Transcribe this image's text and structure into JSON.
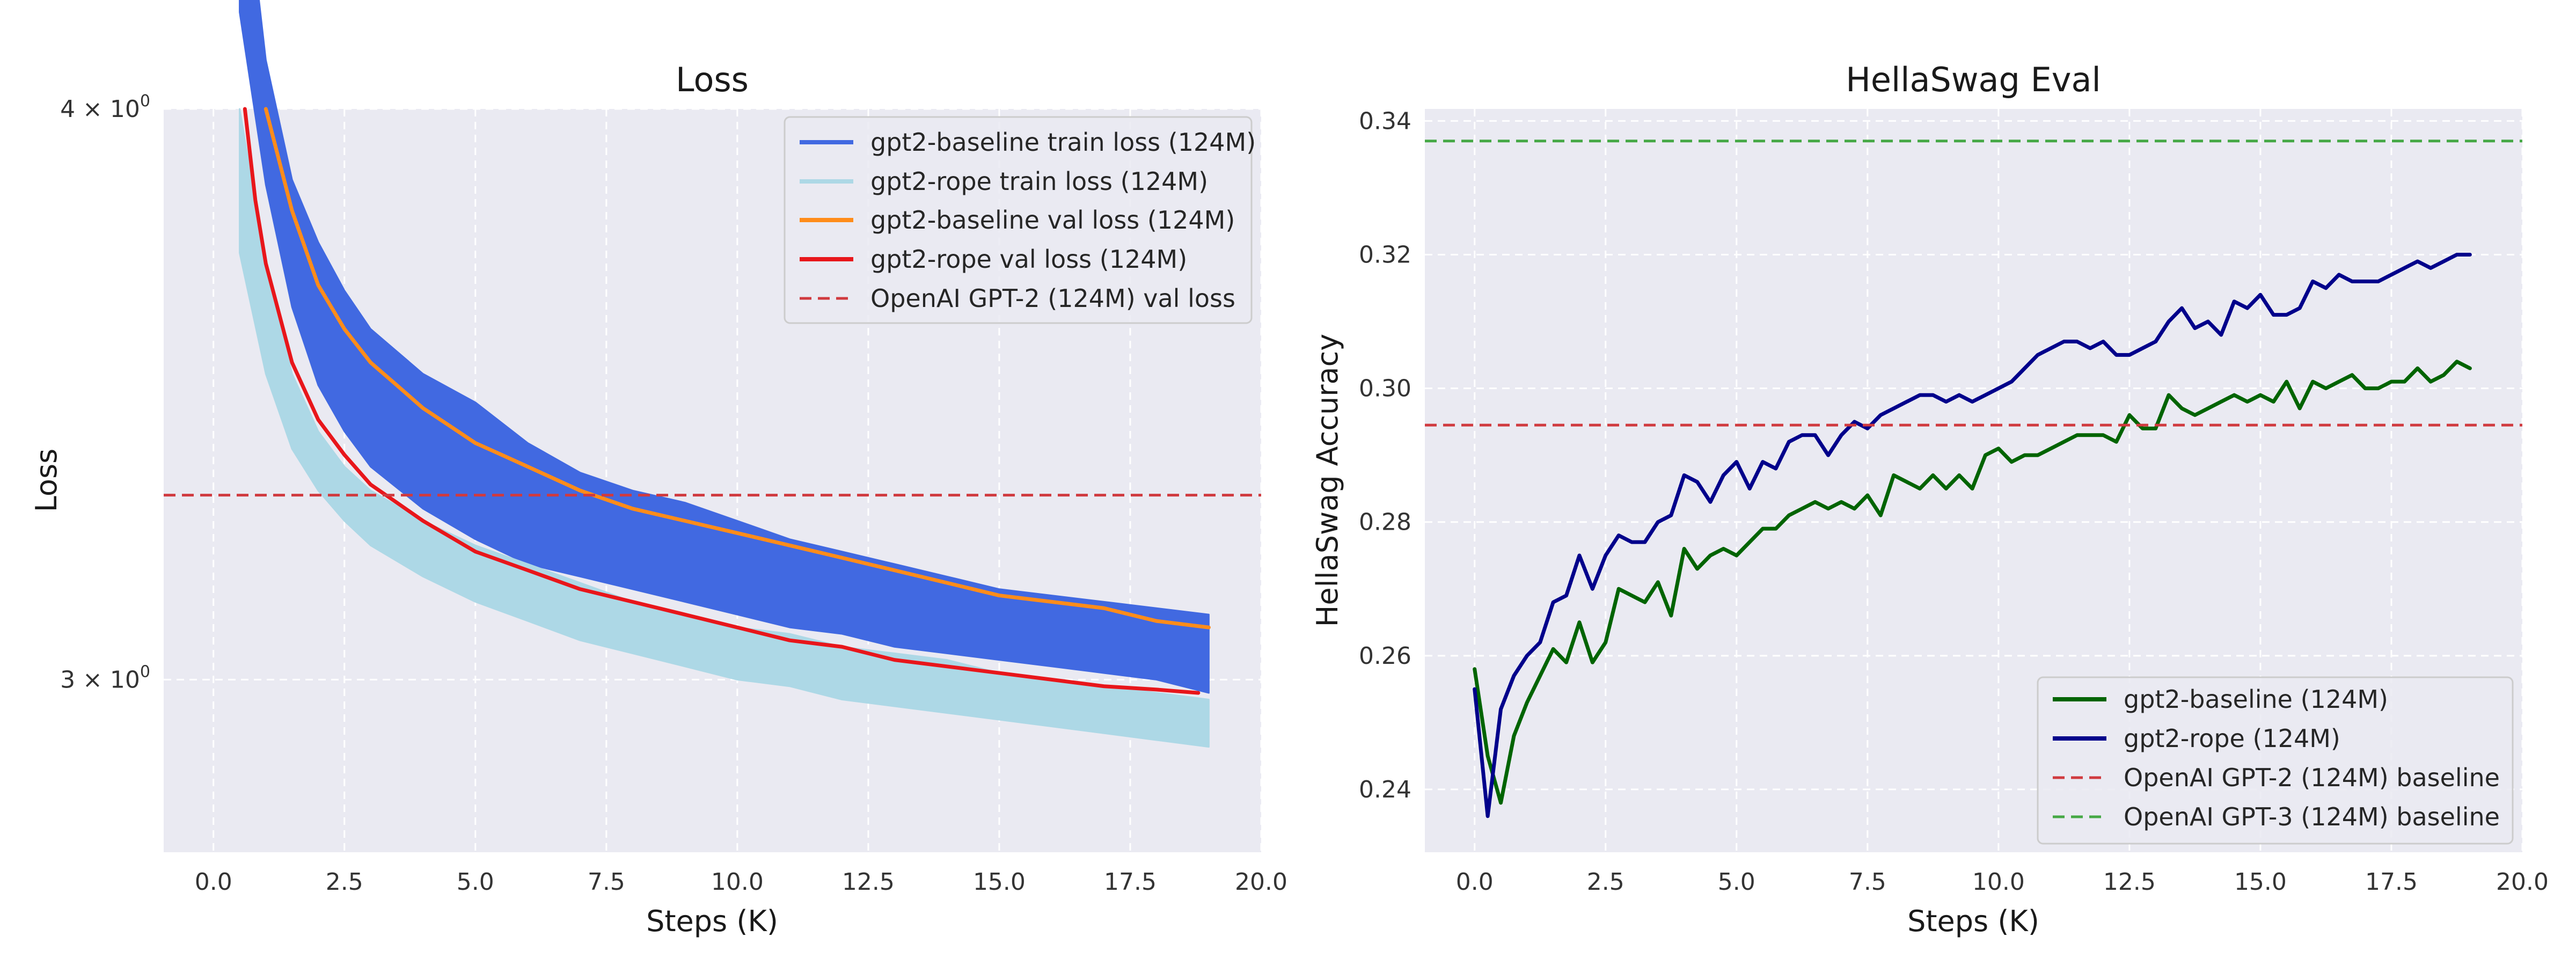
{
  "chart_data": [
    {
      "type": "line",
      "title": "Loss",
      "xlabel": "Steps (K)",
      "ylabel": "Loss",
      "yscale": "log",
      "xlim": [
        -0.95,
        20.0
      ],
      "ylim": [
        2.75,
        4.0
      ],
      "xticks": [
        0.0,
        2.5,
        5.0,
        7.5,
        10.0,
        12.5,
        15.0,
        17.5,
        20.0
      ],
      "xtick_labels": [
        "0.0",
        "2.5",
        "5.0",
        "7.5",
        "10.0",
        "12.5",
        "15.0",
        "17.5",
        "20.0"
      ],
      "yticks": [
        3,
        4
      ],
      "ytick_labels": [
        {
          "base": "3 × 10",
          "exp": "0"
        },
        {
          "base": "4 × 10",
          "exp": "0"
        }
      ],
      "grid": true,
      "legend_position": "top-right",
      "series": [
        {
          "name": "gpt2-baseline train loss (124M)",
          "color": "#4169e1",
          "style": "band",
          "x": [
            0.5,
            1.0,
            1.5,
            2.0,
            2.5,
            3.0,
            4.0,
            5.0,
            6.0,
            7.0,
            8.0,
            9.0,
            10.0,
            11.0,
            12.0,
            13.0,
            14.0,
            15.0,
            16.0,
            17.0,
            18.0,
            19.0
          ],
          "upper": [
            4.6,
            4.1,
            3.86,
            3.74,
            3.65,
            3.58,
            3.5,
            3.45,
            3.38,
            3.33,
            3.3,
            3.28,
            3.25,
            3.22,
            3.2,
            3.18,
            3.16,
            3.14,
            3.13,
            3.12,
            3.11,
            3.1
          ],
          "lower": [
            4.2,
            3.85,
            3.62,
            3.48,
            3.4,
            3.34,
            3.27,
            3.22,
            3.18,
            3.16,
            3.14,
            3.12,
            3.1,
            3.08,
            3.07,
            3.05,
            3.04,
            3.03,
            3.02,
            3.01,
            3.0,
            2.98
          ]
        },
        {
          "name": "gpt2-rope train loss (124M)",
          "color": "#add8e6",
          "style": "band",
          "x": [
            0.5,
            1.0,
            1.5,
            2.0,
            2.5,
            3.0,
            4.0,
            5.0,
            6.0,
            7.0,
            8.0,
            9.0,
            10.0,
            11.0,
            12.0,
            13.0,
            14.0,
            15.0,
            16.0,
            17.0,
            18.0,
            19.0
          ],
          "upper": [
            4.0,
            3.7,
            3.5,
            3.4,
            3.34,
            3.3,
            3.25,
            3.21,
            3.18,
            3.15,
            3.12,
            3.1,
            3.08,
            3.07,
            3.05,
            3.04,
            3.03,
            3.01,
            3.0,
            2.99,
            2.98,
            2.97
          ],
          "lower": [
            3.72,
            3.5,
            3.37,
            3.3,
            3.25,
            3.21,
            3.16,
            3.12,
            3.09,
            3.06,
            3.04,
            3.02,
            3.0,
            2.99,
            2.97,
            2.96,
            2.95,
            2.94,
            2.93,
            2.92,
            2.91,
            2.9
          ]
        },
        {
          "name": "gpt2-baseline val loss (124M)",
          "color": "#ff8c1a",
          "style": "line",
          "x": [
            1.0,
            1.5,
            2.0,
            2.5,
            3.0,
            3.5,
            4.0,
            4.5,
            5.0,
            5.5,
            6.0,
            7.0,
            8.0,
            9.0,
            10.0,
            11.0,
            12.0,
            13.0,
            14.0,
            15.0,
            16.0,
            17.0,
            18.0,
            19.0
          ],
          "y": [
            4.0,
            3.8,
            3.66,
            3.58,
            3.52,
            3.48,
            3.44,
            3.41,
            3.38,
            3.36,
            3.34,
            3.3,
            3.27,
            3.25,
            3.23,
            3.21,
            3.19,
            3.17,
            3.15,
            3.13,
            3.12,
            3.11,
            3.09,
            3.08
          ]
        },
        {
          "name": "gpt2-rope val loss (124M)",
          "color": "#e8161b",
          "style": "line",
          "x": [
            0.6,
            0.8,
            1.0,
            1.5,
            2.0,
            2.5,
            3.0,
            3.5,
            4.0,
            5.0,
            6.0,
            7.0,
            8.0,
            9.0,
            10.0,
            11.0,
            12.0,
            13.0,
            14.0,
            15.0,
            16.0,
            17.0,
            18.0,
            18.8
          ],
          "y": [
            4.0,
            3.82,
            3.7,
            3.52,
            3.42,
            3.36,
            3.31,
            3.28,
            3.25,
            3.2,
            3.17,
            3.14,
            3.12,
            3.1,
            3.08,
            3.06,
            3.05,
            3.03,
            3.02,
            3.01,
            3.0,
            2.99,
            2.985,
            2.98
          ]
        },
        {
          "name": "OpenAI GPT-2 (124M) val loss",
          "color": "#d03a3f",
          "style": "dashed-hline",
          "y": 3.2924
        }
      ]
    },
    {
      "type": "line",
      "title": "HellaSwag Eval",
      "xlabel": "Steps (K)",
      "ylabel": "HellaSwag Accuracy",
      "xlim": [
        -0.95,
        20.0
      ],
      "ylim": [
        0.2306,
        0.3418
      ],
      "xticks": [
        0.0,
        2.5,
        5.0,
        7.5,
        10.0,
        12.5,
        15.0,
        17.5,
        20.0
      ],
      "xtick_labels": [
        "0.0",
        "2.5",
        "5.0",
        "7.5",
        "10.0",
        "12.5",
        "15.0",
        "17.5",
        "20.0"
      ],
      "yticks": [
        0.24,
        0.26,
        0.28,
        0.3,
        0.32,
        0.34
      ],
      "ytick_labels": [
        "0.24",
        "0.26",
        "0.28",
        "0.30",
        "0.32",
        "0.34"
      ],
      "grid": true,
      "legend_position": "lower-right",
      "series": [
        {
          "name": "gpt2-baseline (124M)",
          "color": "#006400",
          "style": "line",
          "x": [
            0.0,
            0.25,
            0.5,
            0.75,
            1.0,
            1.25,
            1.5,
            1.75,
            2.0,
            2.25,
            2.5,
            2.75,
            3.0,
            3.25,
            3.5,
            3.75,
            4.0,
            4.25,
            4.5,
            4.75,
            5.0,
            5.25,
            5.5,
            5.75,
            6.0,
            6.25,
            6.5,
            6.75,
            7.0,
            7.25,
            7.5,
            7.75,
            8.0,
            8.25,
            8.5,
            8.75,
            9.0,
            9.25,
            9.5,
            9.75,
            10.0,
            10.25,
            10.5,
            10.75,
            11.0,
            11.25,
            11.5,
            11.75,
            12.0,
            12.25,
            12.5,
            12.75,
            13.0,
            13.25,
            13.5,
            13.75,
            14.0,
            14.25,
            14.5,
            14.75,
            15.0,
            15.25,
            15.5,
            15.75,
            16.0,
            16.25,
            16.5,
            16.75,
            17.0,
            17.25,
            17.5,
            17.75,
            18.0,
            18.25,
            18.5,
            18.75,
            19.0
          ],
          "y": [
            0.258,
            0.245,
            0.238,
            0.248,
            0.253,
            0.257,
            0.261,
            0.259,
            0.265,
            0.259,
            0.262,
            0.27,
            0.269,
            0.268,
            0.271,
            0.266,
            0.276,
            0.273,
            0.275,
            0.276,
            0.275,
            0.277,
            0.279,
            0.279,
            0.281,
            0.282,
            0.283,
            0.282,
            0.283,
            0.282,
            0.284,
            0.281,
            0.287,
            0.286,
            0.285,
            0.287,
            0.285,
            0.287,
            0.285,
            0.29,
            0.291,
            0.289,
            0.29,
            0.29,
            0.291,
            0.292,
            0.293,
            0.293,
            0.293,
            0.292,
            0.296,
            0.294,
            0.294,
            0.299,
            0.297,
            0.296,
            0.297,
            0.298,
            0.299,
            0.298,
            0.299,
            0.298,
            0.301,
            0.297,
            0.301,
            0.3,
            0.301,
            0.302,
            0.3,
            0.3,
            0.301,
            0.301,
            0.303,
            0.301,
            0.302,
            0.304,
            0.303
          ]
        },
        {
          "name": "gpt2-rope (124M)",
          "color": "#00008b",
          "style": "line",
          "x": [
            0.0,
            0.25,
            0.5,
            0.75,
            1.0,
            1.25,
            1.5,
            1.75,
            2.0,
            2.25,
            2.5,
            2.75,
            3.0,
            3.25,
            3.5,
            3.75,
            4.0,
            4.25,
            4.5,
            4.75,
            5.0,
            5.25,
            5.5,
            5.75,
            6.0,
            6.25,
            6.5,
            6.75,
            7.0,
            7.25,
            7.5,
            7.75,
            8.0,
            8.25,
            8.5,
            8.75,
            9.0,
            9.25,
            9.5,
            9.75,
            10.0,
            10.25,
            10.5,
            10.75,
            11.0,
            11.25,
            11.5,
            11.75,
            12.0,
            12.25,
            12.5,
            12.75,
            13.0,
            13.25,
            13.5,
            13.75,
            14.0,
            14.25,
            14.5,
            14.75,
            15.0,
            15.25,
            15.5,
            15.75,
            16.0,
            16.25,
            16.5,
            16.75,
            17.0,
            17.25,
            17.5,
            17.75,
            18.0,
            18.25,
            18.5,
            18.75,
            19.0
          ],
          "y": [
            0.255,
            0.236,
            0.252,
            0.257,
            0.26,
            0.262,
            0.268,
            0.269,
            0.275,
            0.27,
            0.275,
            0.278,
            0.277,
            0.277,
            0.28,
            0.281,
            0.287,
            0.286,
            0.283,
            0.287,
            0.289,
            0.285,
            0.289,
            0.288,
            0.292,
            0.293,
            0.293,
            0.29,
            0.293,
            0.295,
            0.294,
            0.296,
            0.297,
            0.298,
            0.299,
            0.299,
            0.298,
            0.299,
            0.298,
            0.299,
            0.3,
            0.301,
            0.303,
            0.305,
            0.306,
            0.307,
            0.307,
            0.306,
            0.307,
            0.305,
            0.305,
            0.306,
            0.307,
            0.31,
            0.312,
            0.309,
            0.31,
            0.308,
            0.313,
            0.312,
            0.314,
            0.311,
            0.311,
            0.312,
            0.316,
            0.315,
            0.317,
            0.316,
            0.316,
            0.316,
            0.317,
            0.318,
            0.319,
            0.318,
            0.319,
            0.32,
            0.32
          ]
        },
        {
          "name": "OpenAI GPT-2 (124M) baseline",
          "color": "#d03a3f",
          "style": "dashed-hline",
          "y": 0.2945
        },
        {
          "name": "OpenAI GPT-3 (124M) baseline",
          "color": "#45a845",
          "style": "dashed-hline",
          "y": 0.337
        }
      ]
    }
  ]
}
